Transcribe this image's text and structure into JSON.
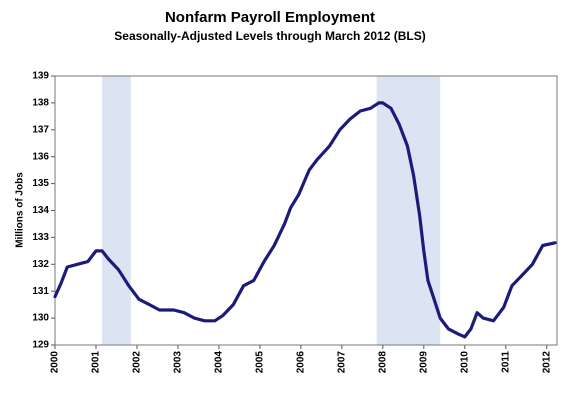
{
  "chart_data": {
    "type": "line",
    "title": "Nonfarm Payroll Employment",
    "subtitle": "Seasonally-Adjusted Levels through March 2012 (BLS)",
    "y_label": "Millions of Jobs",
    "xlim": [
      2000,
      2012.25
    ],
    "ylim": [
      129,
      139
    ],
    "xticks": [
      2000,
      2001,
      2002,
      2003,
      2004,
      2005,
      2006,
      2007,
      2008,
      2009,
      2010,
      2011,
      2012
    ],
    "yticks": [
      129,
      130,
      131,
      132,
      133,
      134,
      135,
      136,
      137,
      138,
      139
    ],
    "grid": false,
    "shaded_ranges": [
      [
        2001.15,
        2001.85
      ],
      [
        2007.85,
        2009.4
      ]
    ],
    "shade_color": "#dce3f2",
    "x": [
      2000.0,
      2000.15,
      2000.3,
      2000.55,
      2000.8,
      2001.0,
      2001.15,
      2001.3,
      2001.55,
      2001.8,
      2002.05,
      2002.3,
      2002.55,
      2002.9,
      2003.15,
      2003.4,
      2003.65,
      2003.9,
      2004.1,
      2004.35,
      2004.6,
      2004.85,
      2005.1,
      2005.35,
      2005.6,
      2005.75,
      2005.95,
      2006.2,
      2006.4,
      2006.7,
      2006.95,
      2007.2,
      2007.45,
      2007.7,
      2007.9,
      2008.0,
      2008.2,
      2008.4,
      2008.6,
      2008.75,
      2008.9,
      2009.0,
      2009.1,
      2009.25,
      2009.4,
      2009.6,
      2009.85,
      2010.0,
      2010.15,
      2010.3,
      2010.45,
      2010.7,
      2010.95,
      2011.15,
      2011.4,
      2011.65,
      2011.9,
      2012.2
    ],
    "series": [
      {
        "name": "Nonfarm Payroll Employment",
        "color": "#1b1b7c",
        "values": [
          130.8,
          131.3,
          131.9,
          132.0,
          132.1,
          132.5,
          132.5,
          132.2,
          131.8,
          131.2,
          130.7,
          130.5,
          130.3,
          130.3,
          130.2,
          130.0,
          129.9,
          129.9,
          130.1,
          130.5,
          131.2,
          131.4,
          132.1,
          132.7,
          133.5,
          134.1,
          134.6,
          135.5,
          135.9,
          136.4,
          137.0,
          137.4,
          137.7,
          137.8,
          138.0,
          138.0,
          137.8,
          137.2,
          136.4,
          135.3,
          133.8,
          132.5,
          131.4,
          130.7,
          130.0,
          129.6,
          129.4,
          129.3,
          129.6,
          130.2,
          130.0,
          129.9,
          130.4,
          131.2,
          131.6,
          132.0,
          132.7,
          132.8
        ]
      }
    ]
  }
}
